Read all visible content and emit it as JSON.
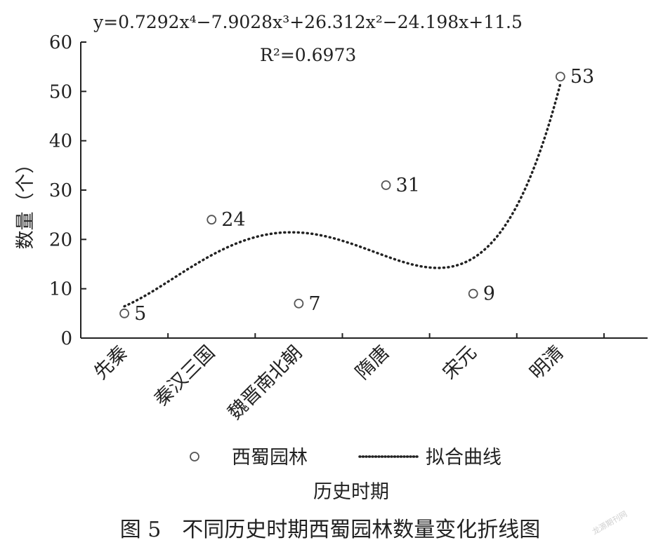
{
  "chart_data": {
    "type": "scatter",
    "equation": "y=0.7292x⁴−7.9028x³+26.312x²−24.198x+11.5",
    "r_squared": "R²=0.6973",
    "categories": [
      "先秦",
      "秦汉三国",
      "魏晋南北朝",
      "隋唐",
      "宋元",
      "明清"
    ],
    "series": [
      {
        "name": "西蜀园林",
        "marker": "open-circle",
        "values": [
          5,
          24,
          7,
          31,
          9,
          53
        ],
        "data_labels": [
          "5",
          "24",
          "7",
          "31",
          "9",
          "53"
        ]
      },
      {
        "name": "拟合曲线",
        "marker": "dotted-line",
        "coefficients": [
          0.7292,
          -7.9028,
          26.312,
          -24.198,
          11.5
        ]
      }
    ],
    "xlabel": "历史时期",
    "ylabel": "数量（个）",
    "ylim": [
      0,
      60
    ],
    "yticks": [
      "0",
      "10",
      "20",
      "30",
      "40",
      "50",
      "60"
    ],
    "grid": false,
    "legend_position": "bottom"
  },
  "caption": "图 5　不同历史时期西蜀园林数量变化折线图",
  "watermark": "龙源期刊网",
  "colors": {
    "ink": "#222222",
    "marker": "#555555"
  }
}
